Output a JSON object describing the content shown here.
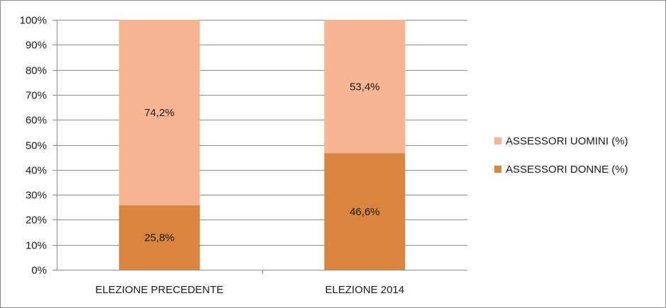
{
  "chart_data": {
    "type": "bar",
    "stacked": true,
    "percent_stacked": true,
    "categories": [
      "ELEZIONE PRECEDENTE",
      "ELEZIONE 2014"
    ],
    "series": [
      {
        "name": "ASSESSORI DONNE (%)",
        "values": [
          25.8,
          46.6
        ],
        "labels": [
          "25,8%",
          "46,6%"
        ],
        "color": "#d9853f"
      },
      {
        "name": "ASSESSORI UOMINI (%)",
        "values": [
          74.2,
          53.4
        ],
        "labels": [
          "74,2%",
          "53,4%"
        ],
        "color": "#f8b592"
      }
    ],
    "ylim": [
      0,
      100
    ],
    "yticks": [
      "0%",
      "10%",
      "20%",
      "30%",
      "40%",
      "50%",
      "60%",
      "70%",
      "80%",
      "90%",
      "100%"
    ],
    "grid": true,
    "legend": "right",
    "legend_order": [
      "ASSESSORI UOMINI (%)",
      "ASSESSORI DONNE (%)"
    ]
  }
}
